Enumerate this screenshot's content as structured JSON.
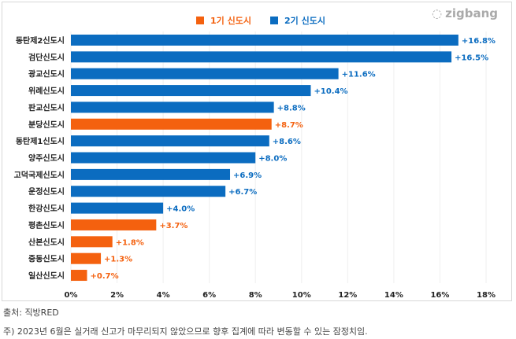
{
  "chart_data": {
    "type": "bar",
    "orientation": "horizontal",
    "categories": [
      "동탄제2신도시",
      "검단신도시",
      "광교신도시",
      "위례신도시",
      "판교신도시",
      "분당신도시",
      "동탄제1신도시",
      "양주신도시",
      "고덕국제신도시",
      "운정신도시",
      "한강신도시",
      "평촌신도시",
      "산본신도시",
      "중동신도시",
      "일산신도시"
    ],
    "values": [
      16.8,
      16.5,
      11.6,
      10.4,
      8.8,
      8.7,
      8.6,
      8.0,
      6.9,
      6.7,
      4.0,
      3.7,
      1.8,
      1.3,
      0.7
    ],
    "labels": [
      "+16.8%",
      "+16.5%",
      "+11.6%",
      "+10.4%",
      "+8.8%",
      "+8.7%",
      "+8.6%",
      "+8.0%",
      "+6.9%",
      "+6.7%",
      "+4.0%",
      "+3.7%",
      "+1.8%",
      "+1.3%",
      "+0.7%"
    ],
    "groups": [
      "2기",
      "2기",
      "2기",
      "2기",
      "2기",
      "1기",
      "2기",
      "2기",
      "2기",
      "2기",
      "2기",
      "1기",
      "1기",
      "1기",
      "1기"
    ],
    "legend": [
      {
        "name": "1기 신도시",
        "color": "#f4610f"
      },
      {
        "name": "2기 신도시",
        "color": "#0b6cc0"
      }
    ],
    "legend_position": "top",
    "xlim": [
      0,
      18
    ],
    "xticks": [
      "0%",
      "2%",
      "4%",
      "6%",
      "8%",
      "10%",
      "12%",
      "14%",
      "16%",
      "18%"
    ],
    "grid": true
  },
  "logo": "zigbang",
  "source": "출처: 직방RED",
  "footnote": "주) 2023년 6월은 실거래 신고가 마무리되지 않았으므로 향후 집계에 따라 변동할 수 있는 잠정치임."
}
